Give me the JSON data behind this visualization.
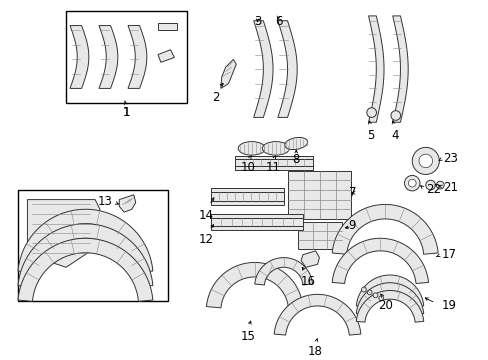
{
  "bg_color": "#ffffff",
  "fig_width": 4.89,
  "fig_height": 3.6,
  "dpi": 100,
  "label_fontsize": 8.5
}
